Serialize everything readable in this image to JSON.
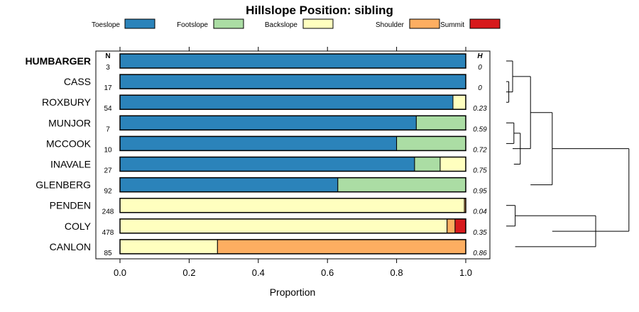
{
  "chart_data": {
    "type": "bar",
    "orientation": "horizontal",
    "stacked": true,
    "title": "Hillslope Position: sibling",
    "xlabel": "Proportion",
    "ylabel": "",
    "xlim": [
      0,
      1
    ],
    "x_ticks": [
      "0.0",
      "0.2",
      "0.4",
      "0.6",
      "0.8",
      "1.0"
    ],
    "x_tick_values": [
      0,
      0.2,
      0.4,
      0.6,
      0.8,
      1.0
    ],
    "legend_position": "top",
    "n_header": "N",
    "h_header": "H",
    "series": [
      {
        "name": "Toeslope",
        "color": "#2b83ba"
      },
      {
        "name": "Footslope",
        "color": "#abdda4"
      },
      {
        "name": "Backslope",
        "color": "#ffffbf"
      },
      {
        "name": "Shoulder",
        "color": "#fdae61"
      },
      {
        "name": "Summit",
        "color": "#d7191c"
      }
    ],
    "categories": [
      "HUMBARGER",
      "CASS",
      "ROXBURY",
      "MUNJOR",
      "MCCOOK",
      "INAVALE",
      "GLENBERG",
      "PENDEN",
      "COLY",
      "CANLON"
    ],
    "highlight": "HUMBARGER",
    "rows": [
      {
        "name": "HUMBARGER",
        "n": "3",
        "h": "0",
        "values": [
          1.0,
          0,
          0,
          0,
          0
        ]
      },
      {
        "name": "CASS",
        "n": "17",
        "h": "0",
        "values": [
          1.0,
          0,
          0,
          0,
          0
        ]
      },
      {
        "name": "ROXBURY",
        "n": "54",
        "h": "0.23",
        "values": [
          0.963,
          0,
          0.037,
          0,
          0
        ]
      },
      {
        "name": "MUNJOR",
        "n": "7",
        "h": "0.59",
        "values": [
          0.857,
          0.143,
          0,
          0,
          0
        ]
      },
      {
        "name": "MCCOOK",
        "n": "10",
        "h": "0.72",
        "values": [
          0.8,
          0.2,
          0,
          0,
          0
        ]
      },
      {
        "name": "INAVALE",
        "n": "27",
        "h": "0.75",
        "values": [
          0.852,
          0.074,
          0.074,
          0,
          0
        ]
      },
      {
        "name": "GLENBERG",
        "n": "92",
        "h": "0.95",
        "values": [
          0.63,
          0.37,
          0,
          0,
          0
        ]
      },
      {
        "name": "PENDEN",
        "n": "248",
        "h": "0.04",
        "values": [
          0,
          0,
          0.996,
          0.004,
          0
        ]
      },
      {
        "name": "COLY",
        "n": "478",
        "h": "0.35",
        "values": [
          0,
          0,
          0.946,
          0.023,
          0.031
        ]
      },
      {
        "name": "CANLON",
        "n": "85",
        "h": "0.86",
        "values": [
          0,
          0,
          0.282,
          0.718,
          0
        ]
      }
    ],
    "dendrogram": {
      "description": "hierarchical clustering of rows",
      "merges": [
        {
          "a": "CASS",
          "b": "ROXBURY",
          "height": 0.02
        },
        {
          "a": "HUMBARGER",
          "b": "CASS+ROXBURY",
          "height": 0.05
        },
        {
          "a": "MUNJOR",
          "b": "MCCOOK",
          "height": 0.06
        },
        {
          "a": "MUNJOR+MCCOOK",
          "b": "INAVALE",
          "height": 0.11
        },
        {
          "a": "HUMBARGER+CASS+ROXBURY",
          "b": "MUNJOR+MCCOOK+INAVALE",
          "height": 0.19
        },
        {
          "a": "PENDEN",
          "b": "COLY",
          "height": 0.07
        },
        {
          "a": "PENDEN+COLY",
          "b": "CANLON",
          "height": 0.7
        },
        {
          "a": "upper",
          "b": "GLENBERG",
          "height": 0.36
        },
        {
          "a": "all_upper",
          "b": "PENDEN+COLY+CANLON",
          "height": 0.96
        }
      ]
    }
  }
}
